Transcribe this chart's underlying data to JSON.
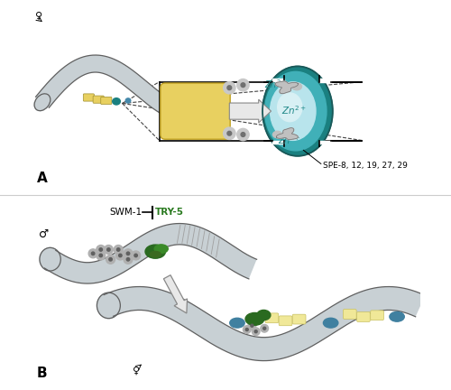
{
  "bg_color": "#ffffff",
  "worm_color_herm": "#c8d0d4",
  "worm_color_male": "#c8d0d4",
  "worm_outline": "#606060",
  "yellow_color": "#e8d060",
  "teal_dark": "#1a8080",
  "teal_mid": "#40b0b8",
  "teal_light": "#90d0d8",
  "sperm_light": "#c8c8c8",
  "sperm_light2": "#b0e0e8",
  "zinc_color": "#208888",
  "green_dark": "#2a6a20",
  "green_mid": "#3a8a28",
  "blue_oval": "#4080a0",
  "gray_sperm": "#b0b0b0",
  "gray_inner": "#808080",
  "spe_text": "SPE-8, 12, 19, 27, 29",
  "swm_text": "SWM-1",
  "try_text": "TRY-5",
  "try_color": "#2a7a20",
  "panel_a": "A",
  "panel_b": "B"
}
